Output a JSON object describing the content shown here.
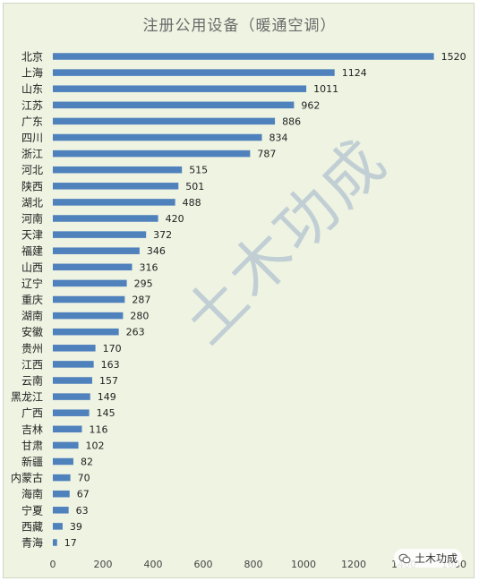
{
  "chart_data": {
    "type": "bar",
    "orientation": "horizontal",
    "title": "注册公用设备（暖通空调）",
    "categories": [
      "北京",
      "上海",
      "山东",
      "江苏",
      "广东",
      "四川",
      "浙江",
      "河北",
      "陕西",
      "湖北",
      "河南",
      "天津",
      "福建",
      "山西",
      "辽宁",
      "重庆",
      "湖南",
      "安徽",
      "贵州",
      "江西",
      "云南",
      "黑龙江",
      "广西",
      "吉林",
      "甘肃",
      "新疆",
      "内蒙古",
      "海南",
      "宁夏",
      "西藏",
      "青海"
    ],
    "values": [
      1520,
      1124,
      1011,
      962,
      886,
      834,
      787,
      515,
      501,
      488,
      420,
      372,
      346,
      316,
      295,
      287,
      280,
      263,
      170,
      163,
      157,
      149,
      145,
      116,
      102,
      82,
      70,
      67,
      63,
      39,
      17
    ],
    "xlim": [
      0,
      1600
    ],
    "x_ticks": [
      0,
      200,
      400,
      600,
      800,
      1000,
      1200,
      1400,
      1600
    ],
    "bar_color": "#4f81bd",
    "grid": false
  },
  "watermark": "土木功成",
  "brand": {
    "label": "土木功成",
    "icon": "wechat-icon"
  }
}
